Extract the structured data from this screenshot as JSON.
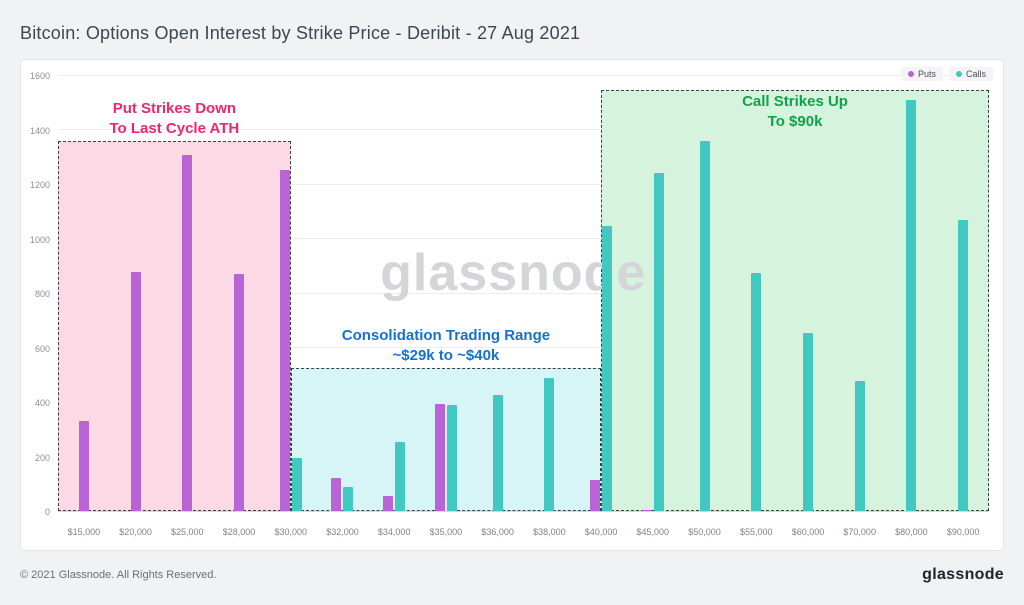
{
  "page": {
    "title": "Bitcoin: Options Open Interest by Strike Price - Deribit - 27 Aug 2021",
    "watermark": "glassnode",
    "footer": {
      "copyright": "© 2021 Glassnode. All Rights Reserved.",
      "brand": "glassnode"
    }
  },
  "legend": {
    "items": [
      {
        "label": "Puts",
        "color": "#b863d6"
      },
      {
        "label": "Calls",
        "color": "#41c8c0"
      }
    ]
  },
  "colors": {
    "puts": "#b863d6",
    "calls": "#41c8c0"
  },
  "chart_data": {
    "type": "bar",
    "title": "Bitcoin: Options Open Interest by Strike Price - Deribit - 27 Aug 2021",
    "categories": [
      "$15,000",
      "$20,000",
      "$25,000",
      "$28,000",
      "$30,000",
      "$32,000",
      "$34,000",
      "$35,000",
      "$36,000",
      "$38,000",
      "$40,000",
      "$45,000",
      "$50,000",
      "$55,000",
      "$60,000",
      "$70,000",
      "$80,000",
      "$90,000"
    ],
    "series": [
      {
        "name": "Puts",
        "color": "#b863d6",
        "values": [
          330,
          880,
          1310,
          870,
          1255,
          120,
          55,
          395,
          0,
          0,
          115,
          5,
          0,
          0,
          0,
          0,
          0,
          0
        ]
      },
      {
        "name": "Calls",
        "color": "#41c8c0",
        "values": [
          0,
          0,
          0,
          0,
          195,
          90,
          255,
          390,
          425,
          490,
          1050,
          1245,
          1360,
          875,
          655,
          480,
          1510,
          1070
        ]
      }
    ],
    "xlabel": "",
    "ylabel": "",
    "ylim": [
      0,
      1600
    ],
    "ytick_interval": 200,
    "grid": true,
    "legend_position": "top-right",
    "regions": [
      {
        "id": "put-strikes-down",
        "lines": [
          "Put Strikes Down",
          "To Last Cycle ATH"
        ],
        "start_u": 0,
        "end_u": 4.5,
        "top_value": 1360,
        "fill": "#fbd9e5",
        "text_color": "#f3256e",
        "label_pos": "above"
      },
      {
        "id": "consolidation-range",
        "lines": [
          "Consolidation Trading Range",
          "~$29k to ~$40k"
        ],
        "start_u": 4.5,
        "end_u": 10.5,
        "top_value": 525,
        "fill": "#d7f4f7",
        "text_color": "#1472cf",
        "label_pos": "above"
      },
      {
        "id": "call-strikes-up",
        "lines": [
          "Call Strikes Up",
          "To $90k"
        ],
        "start_u": 10.5,
        "end_u": 18,
        "top_value": 1550,
        "fill": "#d6f3de",
        "text_color": "#11a14b",
        "label_pos": "inside"
      }
    ]
  }
}
